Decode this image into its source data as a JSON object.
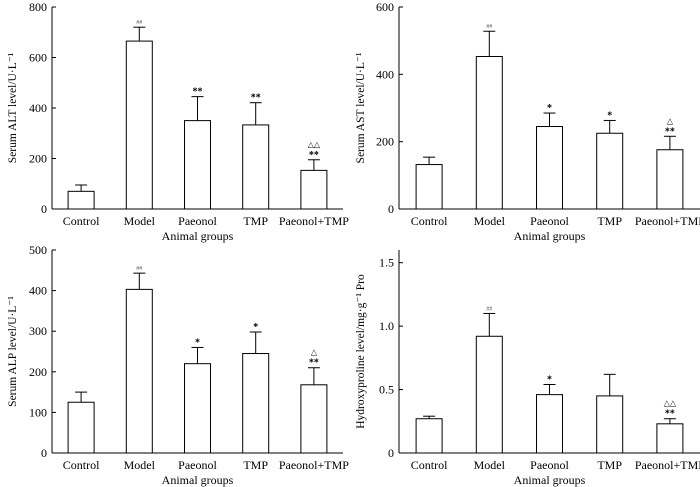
{
  "chart_data": [
    {
      "type": "bar",
      "panel": "ALT",
      "categories": [
        "Control",
        "Model",
        "Paeonol",
        "TMP",
        "Paeonol+TMP"
      ],
      "values": [
        70,
        665,
        350,
        333,
        153
      ],
      "errors": [
        25,
        55,
        95,
        88,
        42
      ],
      "annotations": [
        {
          "hash": "",
          "tri": "",
          "star": ""
        },
        {
          "hash": "##",
          "tri": "",
          "star": ""
        },
        {
          "hash": "",
          "tri": "",
          "star": "**"
        },
        {
          "hash": "",
          "tri": "",
          "star": "**"
        },
        {
          "hash": "",
          "tri": "△△",
          "star": "**"
        }
      ],
      "ticks": [
        0,
        200,
        400,
        600,
        800
      ],
      "tick_labels": [
        "0",
        "200",
        "400",
        "600",
        "800"
      ],
      "ylim": [
        0,
        800
      ],
      "xlabel": "Animal groups",
      "ylabel": "Serum ALT level/U·L⁻¹"
    },
    {
      "type": "bar",
      "panel": "AST",
      "categories": [
        "Control",
        "Model",
        "Paeonol",
        "TMP",
        "Paeonol+TMP"
      ],
      "values": [
        132,
        453,
        245,
        225,
        176
      ],
      "errors": [
        22,
        75,
        40,
        38,
        40
      ],
      "annotations": [
        {
          "hash": "",
          "tri": "",
          "star": ""
        },
        {
          "hash": "##",
          "tri": "",
          "star": ""
        },
        {
          "hash": "",
          "tri": "",
          "star": "*"
        },
        {
          "hash": "",
          "tri": "",
          "star": "*"
        },
        {
          "hash": "",
          "tri": "△",
          "star": "**"
        }
      ],
      "ticks": [
        0,
        200,
        400,
        600
      ],
      "tick_labels": [
        "0",
        "200",
        "400",
        "600"
      ],
      "ylim": [
        0,
        600
      ],
      "xlabel": "Animal groups",
      "ylabel": "Serum AST level/U·L⁻¹"
    },
    {
      "type": "bar",
      "panel": "ALP",
      "categories": [
        "Control",
        "Model",
        "Paeonol",
        "TMP",
        "Paeonol+TMP"
      ],
      "values": [
        125,
        403,
        220,
        245,
        168
      ],
      "errors": [
        25,
        40,
        40,
        53,
        42
      ],
      "annotations": [
        {
          "hash": "",
          "tri": "",
          "star": ""
        },
        {
          "hash": "##",
          "tri": "",
          "star": ""
        },
        {
          "hash": "",
          "tri": "",
          "star": "*"
        },
        {
          "hash": "",
          "tri": "",
          "star": "*"
        },
        {
          "hash": "",
          "tri": "△",
          "star": "**"
        }
      ],
      "ticks": [
        0,
        100,
        200,
        300,
        400,
        500
      ],
      "tick_labels": [
        "0",
        "100",
        "200",
        "300",
        "400",
        "500"
      ],
      "ylim": [
        0,
        500
      ],
      "xlabel": "Animal groups",
      "ylabel": "Serum ALP level/U·L⁻¹"
    },
    {
      "type": "bar",
      "panel": "Hydroxyproline",
      "categories": [
        "Control",
        "Model",
        "Paeonol",
        "TMP",
        "Paeonol+TMP"
      ],
      "values": [
        0.27,
        0.92,
        0.46,
        0.45,
        0.23
      ],
      "errors": [
        0.02,
        0.18,
        0.08,
        0.17,
        0.04
      ],
      "annotations": [
        {
          "hash": "",
          "tri": "",
          "star": ""
        },
        {
          "hash": "##",
          "tri": "",
          "star": ""
        },
        {
          "hash": "",
          "tri": "",
          "star": "*"
        },
        {
          "hash": "",
          "tri": "",
          "star": ""
        },
        {
          "hash": "",
          "tri": "△△",
          "star": "**"
        }
      ],
      "ticks": [
        0,
        0.5,
        1.0,
        1.5
      ],
      "tick_labels": [
        "0",
        "0.5",
        "1.0",
        "1.5"
      ],
      "ylim": [
        0,
        1.6
      ],
      "xlabel": "Animal groups",
      "ylabel": "Hydroxyproline level/mg·g⁻¹ Pro"
    }
  ]
}
